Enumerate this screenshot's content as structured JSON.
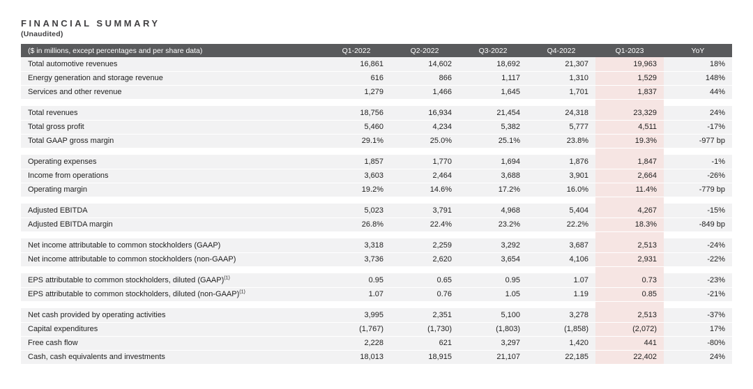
{
  "page": {
    "title": "FINANCIAL SUMMARY",
    "subtitle": "(Unaudited)"
  },
  "colors": {
    "header_bg": "#595A5C",
    "header_text": "#FFFFFF",
    "row_bg": "#F2F2F3",
    "highlight_bg": "#F6E5E3",
    "text": "#1E1E1E"
  },
  "table": {
    "header": {
      "label": "($ in millions, except percentages and per share data)",
      "columns": [
        "Q1-2022",
        "Q2-2022",
        "Q3-2022",
        "Q4-2022",
        "Q1-2023",
        "YoY"
      ]
    },
    "highlight_column": "Q1-2023",
    "groups": [
      {
        "rows": [
          {
            "label": "Total automotive revenues",
            "values": [
              "16,861",
              "14,602",
              "18,692",
              "21,307",
              "19,963",
              "18%"
            ]
          },
          {
            "label": "Energy generation and storage revenue",
            "values": [
              "616",
              "866",
              "1,117",
              "1,310",
              "1,529",
              "148%"
            ]
          },
          {
            "label": "Services and other revenue",
            "values": [
              "1,279",
              "1,466",
              "1,645",
              "1,701",
              "1,837",
              "44%"
            ]
          }
        ]
      },
      {
        "rows": [
          {
            "label": "Total revenues",
            "values": [
              "18,756",
              "16,934",
              "21,454",
              "24,318",
              "23,329",
              "24%"
            ]
          },
          {
            "label": "Total gross profit",
            "values": [
              "5,460",
              "4,234",
              "5,382",
              "5,777",
              "4,511",
              "-17%"
            ]
          },
          {
            "label": "Total GAAP gross margin",
            "values": [
              "29.1%",
              "25.0%",
              "25.1%",
              "23.8%",
              "19.3%",
              "-977 bp"
            ]
          }
        ]
      },
      {
        "rows": [
          {
            "label": "Operating expenses",
            "values": [
              "1,857",
              "1,770",
              "1,694",
              "1,876",
              "1,847",
              "-1%"
            ]
          },
          {
            "label": "Income from operations",
            "values": [
              "3,603",
              "2,464",
              "3,688",
              "3,901",
              "2,664",
              "-26%"
            ]
          },
          {
            "label": "Operating margin",
            "values": [
              "19.2%",
              "14.6%",
              "17.2%",
              "16.0%",
              "11.4%",
              "-779 bp"
            ]
          }
        ]
      },
      {
        "rows": [
          {
            "label": "Adjusted EBITDA",
            "values": [
              "5,023",
              "3,791",
              "4,968",
              "5,404",
              "4,267",
              "-15%"
            ]
          },
          {
            "label": "Adjusted EBITDA margin",
            "values": [
              "26.8%",
              "22.4%",
              "23.2%",
              "22.2%",
              "18.3%",
              "-849 bp"
            ]
          }
        ]
      },
      {
        "rows": [
          {
            "label": "Net income attributable to common stockholders (GAAP)",
            "values": [
              "3,318",
              "2,259",
              "3,292",
              "3,687",
              "2,513",
              "-24%"
            ]
          },
          {
            "label": "Net income attributable to common stockholders (non-GAAP)",
            "values": [
              "3,736",
              "2,620",
              "3,654",
              "4,106",
              "2,931",
              "-22%"
            ]
          }
        ]
      },
      {
        "rows": [
          {
            "label": "EPS attributable to common stockholders, diluted (GAAP)",
            "sup": "(1)",
            "values": [
              "0.95",
              "0.65",
              "0.95",
              "1.07",
              "0.73",
              "-23%"
            ]
          },
          {
            "label": "EPS attributable to common stockholders, diluted (non-GAAP)",
            "sup": "(1)",
            "values": [
              "1.07",
              "0.76",
              "1.05",
              "1.19",
              "0.85",
              "-21%"
            ]
          }
        ]
      },
      {
        "rows": [
          {
            "label": "Net cash provided by operating activities",
            "values": [
              "3,995",
              "2,351",
              "5,100",
              "3,278",
              "2,513",
              "-37%"
            ]
          },
          {
            "label": "Capital expenditures",
            "values": [
              "(1,767)",
              "(1,730)",
              "(1,803)",
              "(1,858)",
              "(2,072)",
              "17%"
            ]
          },
          {
            "label": "Free cash flow",
            "values": [
              "2,228",
              "621",
              "3,297",
              "1,420",
              "441",
              "-80%"
            ]
          },
          {
            "label": "Cash, cash equivalents and investments",
            "values": [
              "18,013",
              "18,915",
              "21,107",
              "22,185",
              "22,402",
              "24%"
            ]
          }
        ]
      }
    ]
  }
}
